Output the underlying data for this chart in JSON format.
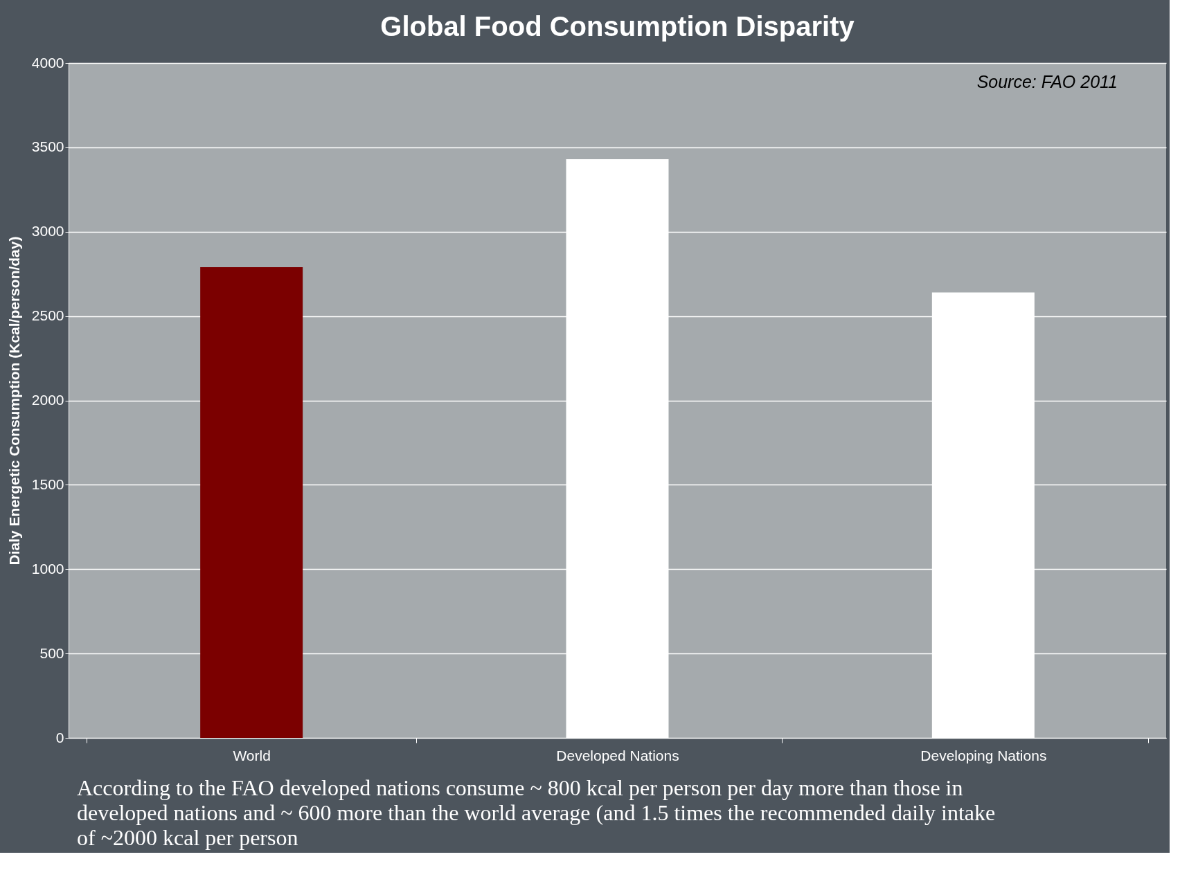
{
  "chart_data": {
    "type": "bar",
    "title": "Global Food Consumption Disparity",
    "ylabel": "Dialy Energetic Consumption (Kcal/person/day)",
    "categories": [
      "World",
      "Developed Nations",
      "Developing Nations"
    ],
    "values": [
      2790,
      3430,
      2640
    ],
    "colors": [
      "#7b0000",
      "#ffffff",
      "#ffffff"
    ],
    "ylim": [
      0,
      4000
    ],
    "yticks": [
      0,
      500,
      1000,
      1500,
      2000,
      2500,
      3000,
      3500,
      4000
    ],
    "grid": "y",
    "annotations": [
      "Source: FAO 2011",
      "According to the FAO developed nations consume ~ 800 kcal per person per day more than those in developed nations and ~ 600 more than the world average (and 1.5 times the recommended daily intake of ~2000 kcal per person"
    ]
  }
}
